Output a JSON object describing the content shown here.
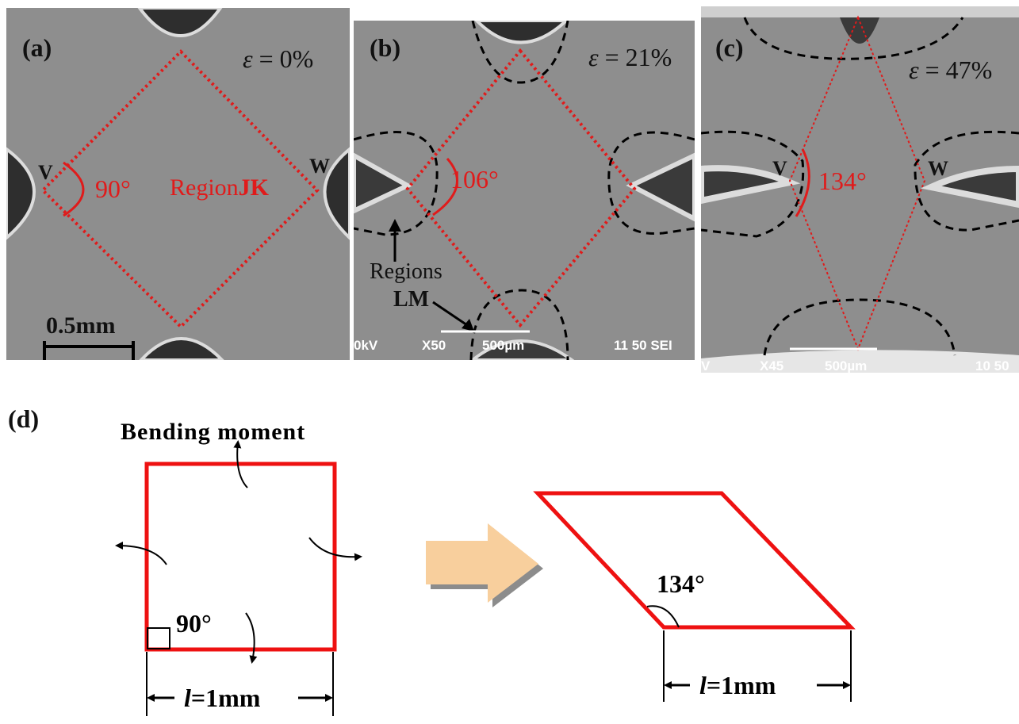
{
  "panels": {
    "a": {
      "label": "(a)",
      "strain_symbol": "ε",
      "strain_value": " = 0%",
      "vertex_left": "V",
      "vertex_right": "W",
      "angle": "90°",
      "region_prefix": "Region",
      "region_name": "JK",
      "scalebar": "0.5mm"
    },
    "b": {
      "label": "(b)",
      "strain_symbol": "ε",
      "strain_value": " = 21%",
      "angle": "106°",
      "regions_label": "Regions",
      "regions_name": "LM",
      "sem_kv": "0kV",
      "sem_mag": "X50",
      "sem_scale": "500µm",
      "sem_info": "11 50 SEI"
    },
    "c": {
      "label": "(c)",
      "strain_symbol": "ε",
      "strain_value": " = 47%",
      "vertex_left": "V",
      "vertex_right": "W",
      "angle": "134°",
      "sem_kv": "V",
      "sem_mag": "X45",
      "sem_scale": "500µm",
      "sem_info": "10 50"
    },
    "d": {
      "label": "(d)",
      "title": "Bending moment",
      "angle_square": "90°",
      "angle_rhombus": "134°",
      "dim_square": "=1mm",
      "dim_rhombus": "=1mm",
      "dim_symbol": "l"
    }
  },
  "colors": {
    "sem_background": "#8e8e8e",
    "highlight": "#e01b1b",
    "arrow": "#f8cf9d"
  }
}
